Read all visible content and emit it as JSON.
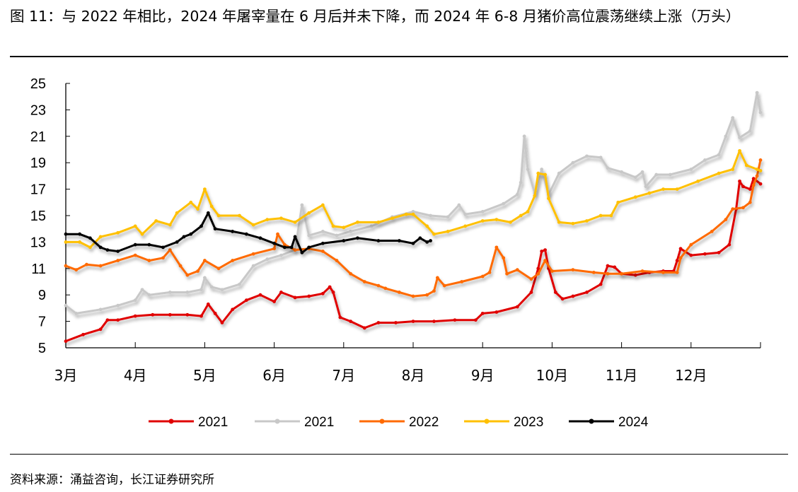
{
  "title": "图 11：与 2022 年相比，2024 年屠宰量在 6 月后并未下降，而 2024 年 6-8 月猪价高位震荡继续上涨（万头）",
  "source": "资料来源：涌益咨询，长江证券研究所",
  "chart_data": {
    "type": "line",
    "title": "图 11：与 2022 年相比，2024 年屠宰量在 6 月后并未下降，而 2024 年 6-8 月猪价高位震荡继续上涨（万头）",
    "xlabel": "",
    "ylabel": "",
    "ylim": [
      5,
      25
    ],
    "yticks": [
      "25",
      "23",
      "21",
      "19",
      "17",
      "15",
      "13",
      "11",
      "9",
      "7",
      "5"
    ],
    "xlim": [
      3,
      13
    ],
    "xticks": [
      "3月",
      "4月",
      "5月",
      "6月",
      "7月",
      "8月",
      "9月",
      "10月",
      "11月",
      "12月"
    ],
    "x_unit_note": "x values are month positions (3 = 3月 start)",
    "grid": false,
    "legend": "bottom",
    "series": [
      {
        "name": "2021",
        "color": "#e00000",
        "points": [
          [
            3.0,
            5.5
          ],
          [
            3.25,
            6.0
          ],
          [
            3.5,
            6.4
          ],
          [
            3.6,
            7.1
          ],
          [
            3.75,
            7.1
          ],
          [
            4.0,
            7.4
          ],
          [
            4.25,
            7.5
          ],
          [
            4.5,
            7.5
          ],
          [
            4.75,
            7.5
          ],
          [
            4.95,
            7.4
          ],
          [
            5.05,
            8.3
          ],
          [
            5.15,
            7.6
          ],
          [
            5.25,
            6.9
          ],
          [
            5.4,
            7.9
          ],
          [
            5.6,
            8.6
          ],
          [
            5.8,
            9.0
          ],
          [
            6.0,
            8.5
          ],
          [
            6.1,
            9.2
          ],
          [
            6.3,
            8.8
          ],
          [
            6.5,
            8.9
          ],
          [
            6.7,
            9.1
          ],
          [
            6.8,
            9.6
          ],
          [
            6.85,
            9.2
          ],
          [
            6.95,
            7.3
          ],
          [
            7.1,
            7.0
          ],
          [
            7.3,
            6.5
          ],
          [
            7.5,
            6.9
          ],
          [
            7.75,
            6.9
          ],
          [
            8.0,
            7.0
          ],
          [
            8.3,
            7.0
          ],
          [
            8.6,
            7.1
          ],
          [
            8.9,
            7.1
          ],
          [
            9.0,
            7.6
          ],
          [
            9.2,
            7.7
          ],
          [
            9.5,
            8.1
          ],
          [
            9.7,
            9.2
          ],
          [
            9.8,
            11.0
          ],
          [
            9.85,
            12.3
          ],
          [
            9.9,
            12.4
          ],
          [
            9.95,
            11.0
          ],
          [
            10.05,
            9.2
          ],
          [
            10.15,
            8.7
          ],
          [
            10.3,
            8.9
          ],
          [
            10.5,
            9.2
          ],
          [
            10.7,
            9.8
          ],
          [
            10.8,
            11.2
          ],
          [
            10.9,
            11.1
          ],
          [
            11.0,
            10.6
          ],
          [
            11.2,
            10.5
          ],
          [
            11.4,
            10.7
          ],
          [
            11.6,
            10.8
          ],
          [
            11.75,
            10.8
          ],
          [
            11.8,
            11.6
          ],
          [
            11.85,
            12.5
          ],
          [
            12.0,
            12.0
          ],
          [
            12.2,
            12.1
          ],
          [
            12.4,
            12.2
          ],
          [
            12.55,
            12.8
          ],
          [
            12.65,
            15.5
          ],
          [
            12.7,
            17.6
          ],
          [
            12.75,
            17.2
          ],
          [
            12.85,
            17.0
          ],
          [
            12.9,
            17.8
          ],
          [
            13.0,
            17.4
          ]
        ]
      },
      {
        "name": "2021",
        "color": "#c8c8c8",
        "points": [
          [
            3.0,
            8.2
          ],
          [
            3.15,
            7.6
          ],
          [
            3.5,
            7.9
          ],
          [
            3.75,
            8.2
          ],
          [
            4.0,
            8.6
          ],
          [
            4.1,
            9.4
          ],
          [
            4.2,
            9.0
          ],
          [
            4.5,
            9.2
          ],
          [
            4.75,
            9.2
          ],
          [
            4.95,
            9.4
          ],
          [
            5.0,
            10.3
          ],
          [
            5.1,
            9.6
          ],
          [
            5.25,
            9.4
          ],
          [
            5.5,
            9.8
          ],
          [
            5.7,
            11.2
          ],
          [
            5.9,
            11.7
          ],
          [
            6.1,
            12.0
          ],
          [
            6.3,
            12.4
          ],
          [
            6.4,
            15.8
          ],
          [
            6.5,
            13.5
          ],
          [
            6.7,
            13.8
          ],
          [
            6.9,
            13.5
          ],
          [
            7.1,
            13.8
          ],
          [
            7.4,
            14.2
          ],
          [
            7.7,
            14.9
          ],
          [
            8.0,
            15.3
          ],
          [
            8.25,
            15.0
          ],
          [
            8.5,
            14.9
          ],
          [
            8.66,
            15.8
          ],
          [
            8.75,
            15.1
          ],
          [
            9.0,
            15.3
          ],
          [
            9.3,
            15.9
          ],
          [
            9.5,
            16.6
          ],
          [
            9.55,
            17.5
          ],
          [
            9.6,
            21.0
          ],
          [
            9.65,
            18.5
          ],
          [
            9.75,
            16.7
          ],
          [
            9.85,
            18.5
          ],
          [
            9.95,
            16.6
          ],
          [
            10.1,
            18.2
          ],
          [
            10.3,
            19.0
          ],
          [
            10.5,
            19.5
          ],
          [
            10.7,
            19.4
          ],
          [
            10.8,
            18.6
          ],
          [
            11.0,
            18.3
          ],
          [
            11.2,
            17.9
          ],
          [
            11.3,
            18.3
          ],
          [
            11.35,
            17.2
          ],
          [
            11.5,
            18.1
          ],
          [
            11.7,
            18.1
          ],
          [
            12.0,
            18.5
          ],
          [
            12.2,
            19.2
          ],
          [
            12.4,
            19.6
          ],
          [
            12.5,
            21.0
          ],
          [
            12.6,
            22.4
          ],
          [
            12.7,
            20.9
          ],
          [
            12.85,
            21.4
          ],
          [
            12.95,
            24.3
          ],
          [
            13.0,
            22.8
          ]
        ]
      },
      {
        "name": "2022",
        "color": "#ff6a00",
        "points": [
          [
            3.0,
            11.2
          ],
          [
            3.15,
            10.9
          ],
          [
            3.3,
            11.3
          ],
          [
            3.5,
            11.2
          ],
          [
            3.75,
            11.6
          ],
          [
            4.0,
            12.0
          ],
          [
            4.2,
            11.6
          ],
          [
            4.4,
            11.8
          ],
          [
            4.5,
            12.4
          ],
          [
            4.65,
            11.2
          ],
          [
            4.75,
            10.5
          ],
          [
            4.9,
            10.8
          ],
          [
            5.0,
            11.6
          ],
          [
            5.2,
            11.0
          ],
          [
            5.4,
            11.6
          ],
          [
            5.7,
            12.1
          ],
          [
            6.0,
            12.5
          ],
          [
            6.05,
            13.6
          ],
          [
            6.15,
            12.8
          ],
          [
            6.3,
            12.4
          ],
          [
            6.5,
            12.5
          ],
          [
            6.7,
            12.3
          ],
          [
            6.9,
            11.6
          ],
          [
            7.1,
            10.6
          ],
          [
            7.3,
            10.0
          ],
          [
            7.5,
            9.7
          ],
          [
            7.6,
            9.5
          ],
          [
            7.8,
            9.2
          ],
          [
            8.0,
            8.9
          ],
          [
            8.2,
            9.0
          ],
          [
            8.3,
            9.3
          ],
          [
            8.35,
            10.3
          ],
          [
            8.45,
            9.7
          ],
          [
            8.7,
            10.0
          ],
          [
            9.0,
            10.4
          ],
          [
            9.1,
            10.7
          ],
          [
            9.2,
            12.6
          ],
          [
            9.3,
            11.8
          ],
          [
            9.35,
            10.6
          ],
          [
            9.5,
            10.9
          ],
          [
            9.7,
            10.2
          ],
          [
            9.8,
            10.6
          ],
          [
            9.9,
            11.6
          ],
          [
            10.0,
            10.8
          ],
          [
            10.3,
            10.9
          ],
          [
            10.6,
            10.7
          ],
          [
            10.8,
            10.6
          ],
          [
            11.0,
            10.6
          ],
          [
            11.3,
            10.8
          ],
          [
            11.6,
            10.7
          ],
          [
            11.8,
            10.7
          ],
          [
            11.85,
            11.8
          ],
          [
            12.0,
            12.8
          ],
          [
            12.3,
            13.8
          ],
          [
            12.5,
            14.7
          ],
          [
            12.6,
            15.5
          ],
          [
            12.75,
            15.6
          ],
          [
            12.85,
            16.0
          ],
          [
            12.9,
            17.3
          ],
          [
            12.95,
            18.0
          ],
          [
            13.0,
            19.2
          ]
        ]
      },
      {
        "name": "2023",
        "color": "#ffc000",
        "points": [
          [
            3.0,
            13.0
          ],
          [
            3.2,
            13.0
          ],
          [
            3.35,
            12.6
          ],
          [
            3.5,
            13.4
          ],
          [
            3.75,
            13.7
          ],
          [
            4.0,
            14.2
          ],
          [
            4.1,
            13.6
          ],
          [
            4.3,
            14.6
          ],
          [
            4.5,
            14.3
          ],
          [
            4.6,
            15.2
          ],
          [
            4.8,
            16.0
          ],
          [
            4.9,
            15.5
          ],
          [
            5.0,
            17.0
          ],
          [
            5.1,
            15.7
          ],
          [
            5.2,
            15.0
          ],
          [
            5.5,
            15.0
          ],
          [
            5.7,
            14.3
          ],
          [
            5.9,
            14.7
          ],
          [
            6.1,
            14.8
          ],
          [
            6.3,
            14.5
          ],
          [
            6.5,
            15.2
          ],
          [
            6.7,
            15.8
          ],
          [
            6.85,
            14.2
          ],
          [
            7.0,
            14.1
          ],
          [
            7.2,
            14.5
          ],
          [
            7.5,
            14.5
          ],
          [
            7.7,
            14.8
          ],
          [
            7.9,
            15.1
          ],
          [
            8.0,
            15.1
          ],
          [
            8.2,
            14.2
          ],
          [
            8.3,
            13.6
          ],
          [
            8.5,
            13.8
          ],
          [
            8.75,
            14.2
          ],
          [
            9.0,
            14.6
          ],
          [
            9.2,
            14.7
          ],
          [
            9.4,
            14.5
          ],
          [
            9.55,
            15.0
          ],
          [
            9.65,
            15.3
          ],
          [
            9.75,
            16.5
          ],
          [
            9.8,
            18.2
          ],
          [
            9.9,
            18.1
          ],
          [
            9.95,
            16.3
          ],
          [
            10.1,
            14.5
          ],
          [
            10.3,
            14.4
          ],
          [
            10.5,
            14.6
          ],
          [
            10.7,
            15.0
          ],
          [
            10.85,
            15.0
          ],
          [
            10.95,
            16.0
          ],
          [
            11.2,
            16.4
          ],
          [
            11.4,
            16.7
          ],
          [
            11.6,
            17.0
          ],
          [
            11.8,
            17.0
          ],
          [
            12.1,
            17.6
          ],
          [
            12.4,
            18.2
          ],
          [
            12.6,
            18.5
          ],
          [
            12.7,
            19.9
          ],
          [
            12.8,
            18.8
          ],
          [
            12.95,
            18.5
          ],
          [
            13.0,
            18.4
          ]
        ]
      },
      {
        "name": "2024",
        "color": "#000000",
        "points": [
          [
            3.0,
            13.6
          ],
          [
            3.2,
            13.6
          ],
          [
            3.35,
            13.3
          ],
          [
            3.5,
            12.6
          ],
          [
            3.6,
            12.4
          ],
          [
            3.75,
            12.3
          ],
          [
            4.0,
            12.8
          ],
          [
            4.2,
            12.8
          ],
          [
            4.4,
            12.6
          ],
          [
            4.6,
            13.0
          ],
          [
            4.7,
            13.4
          ],
          [
            4.8,
            13.6
          ],
          [
            4.95,
            14.2
          ],
          [
            5.05,
            15.2
          ],
          [
            5.15,
            14.0
          ],
          [
            5.4,
            13.8
          ],
          [
            5.6,
            13.6
          ],
          [
            5.8,
            13.3
          ],
          [
            6.0,
            12.9
          ],
          [
            6.15,
            12.6
          ],
          [
            6.25,
            12.6
          ],
          [
            6.3,
            13.4
          ],
          [
            6.4,
            12.2
          ],
          [
            6.5,
            12.6
          ],
          [
            6.7,
            12.9
          ],
          [
            7.0,
            13.1
          ],
          [
            7.2,
            13.3
          ],
          [
            7.5,
            13.1
          ],
          [
            7.8,
            13.1
          ],
          [
            8.0,
            12.9
          ],
          [
            8.1,
            13.3
          ],
          [
            8.2,
            13.0
          ],
          [
            8.25,
            13.1
          ]
        ]
      }
    ]
  }
}
